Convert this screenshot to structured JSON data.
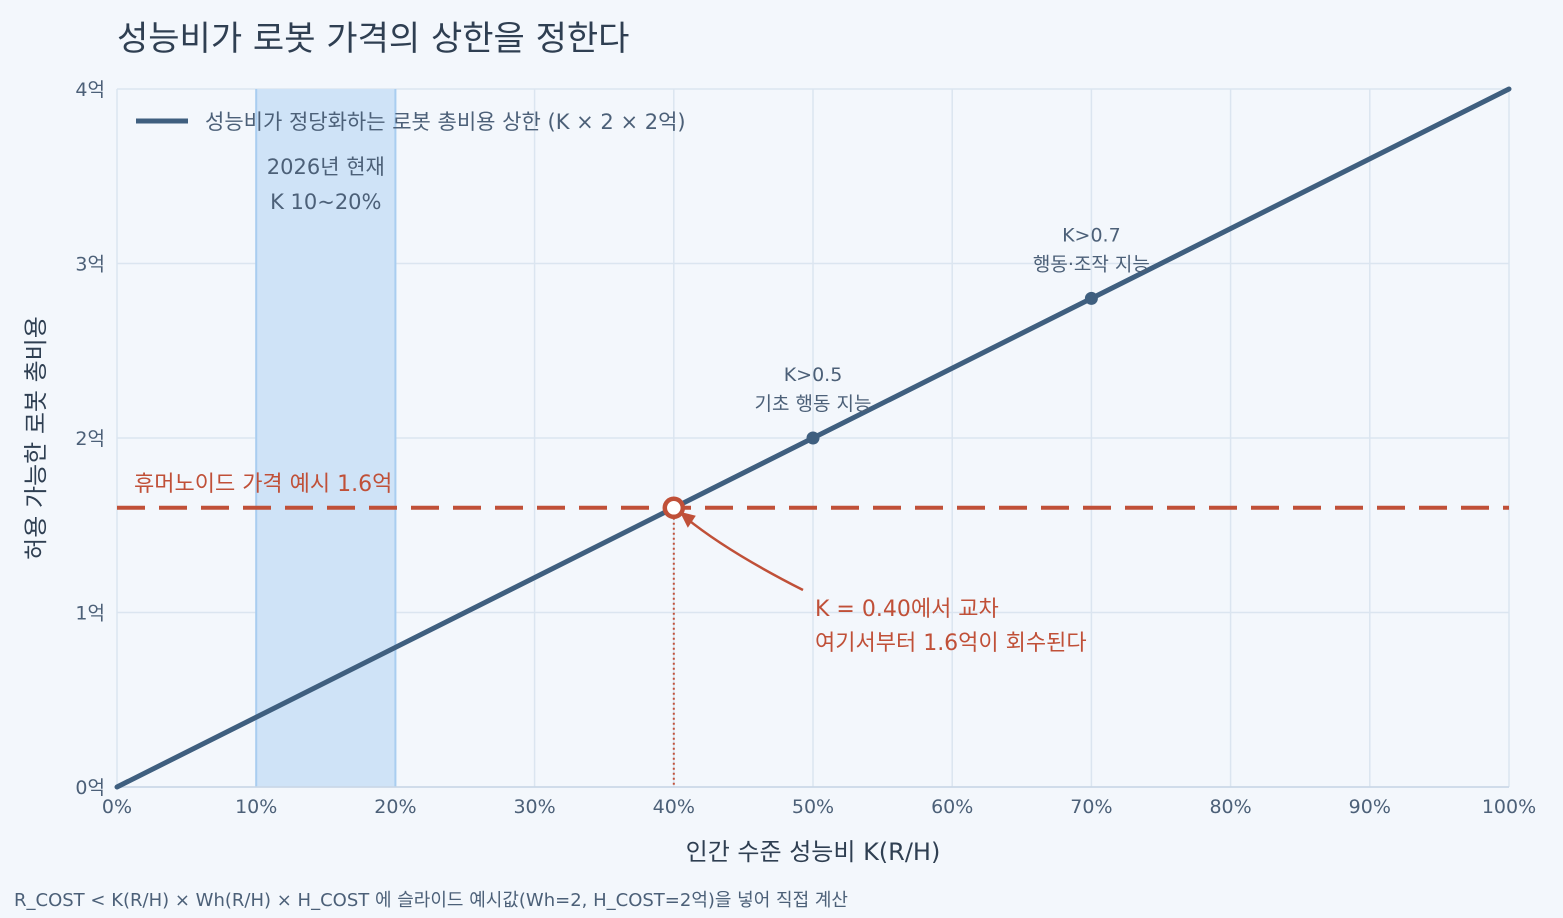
{
  "chart_data": {
    "type": "line",
    "title": "성능비가 로봇 가격의 상한을 정한다",
    "xlabel": "인간 수준 성능비  K(R/H)",
    "ylabel": "허용 가능한 로봇 총비용",
    "xlim": [
      0,
      1.0
    ],
    "ylim": [
      0,
      4
    ],
    "x_ticks": [
      {
        "value": 0.0,
        "label": "0%"
      },
      {
        "value": 0.1,
        "label": "10%"
      },
      {
        "value": 0.2,
        "label": "20%"
      },
      {
        "value": 0.3,
        "label": "30%"
      },
      {
        "value": 0.4,
        "label": "40%"
      },
      {
        "value": 0.5,
        "label": "50%"
      },
      {
        "value": 0.6,
        "label": "60%"
      },
      {
        "value": 0.7,
        "label": "70%"
      },
      {
        "value": 0.8,
        "label": "80%"
      },
      {
        "value": 0.9,
        "label": "90%"
      },
      {
        "value": 1.0,
        "label": "100%"
      }
    ],
    "y_ticks": [
      {
        "value": 0,
        "label": "0억"
      },
      {
        "value": 1,
        "label": "1억"
      },
      {
        "value": 2,
        "label": "2억"
      },
      {
        "value": 3,
        "label": "3억"
      },
      {
        "value": 4,
        "label": "4억"
      }
    ],
    "grid": true,
    "legend_position": "top-left",
    "series": [
      {
        "name": "성능비가 정당화하는 로봇 총비용 상한  (K × 2 × 2억)",
        "color": "#3f5f7f",
        "x": [
          0.0,
          1.0
        ],
        "y": [
          0,
          4
        ]
      }
    ],
    "reference_line": {
      "y": 1.6,
      "label": "휴머노이드 가격 예시  1.6억",
      "color": "#c05038"
    },
    "band": {
      "x_range": [
        0.1,
        0.2
      ],
      "lines": [
        "2026년 현재",
        "K 10~20%"
      ],
      "color": "#b8d6f5"
    },
    "milestones": [
      {
        "x": 0.5,
        "y": 2.0,
        "lines": [
          "K>0.5",
          "기초 행동 지능"
        ]
      },
      {
        "x": 0.7,
        "y": 2.8,
        "lines": [
          "K>0.7",
          "행동·조작 지능"
        ]
      }
    ],
    "crossing": {
      "x": 0.4,
      "y": 1.6,
      "lines": [
        "K = 0.40에서 교차",
        "여기서부터 1.6억이 회수된다"
      ]
    }
  },
  "footnote": "R_COST < K(R/H) × Wh(R/H) × H_COST 에 슬라이드 예시값(Wh=2, H_COST=2억)을 넣어 직접 계산",
  "colors": {
    "background": "#f3f7fc",
    "grid": "#dbe5f0",
    "main_line": "#3f5f7f",
    "accent_red": "#c05038",
    "band_fill": "#cfe3f7",
    "band_edge": "#a9cdf0",
    "text": "#4c6078"
  }
}
